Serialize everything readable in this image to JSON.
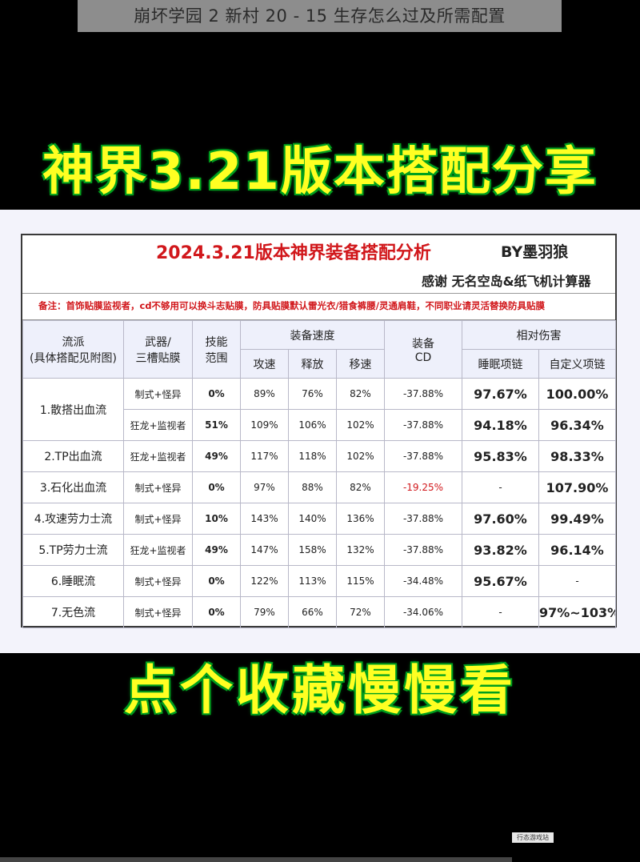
{
  "caption": "崩坏学园 2 新村 20 - 15 生存怎么过及所需配置",
  "headline_top": "神界3.21版本搭配分享",
  "headline_bottom": "点个收藏慢慢看",
  "table": {
    "title": "2024.3.21版本神界装备搭配分析",
    "author": "BY墨羽狼",
    "thanks": "感谢 无名空岛&纸飞机计算器",
    "note": "备注：首饰贴膜监视者，cd不够用可以换斗志贴膜，防具贴膜默认雷光衣/猎食裤腰/灵通肩鞋，不同职业请灵活替换防具贴膜",
    "headers": {
      "school": "流派",
      "school_sub": "(具体搭配见附图)",
      "weapon": "武器/",
      "weapon_sub": "三槽贴膜",
      "skill": "技能",
      "skill_sub": "范围",
      "speed": "装备速度",
      "atk": "攻速",
      "cast": "释放",
      "move": "移速",
      "cd": "装备",
      "cd_sub": "CD",
      "dmg": "相对伤害",
      "dmg_a": "睡眠项链",
      "dmg_b": "自定义项链"
    },
    "rows": [
      {
        "name": "1.散搭出血流",
        "weapon": "制式+怪异",
        "skill": "0%",
        "atk": "89%",
        "cast": "76%",
        "move": "82%",
        "cd": "-37.88%",
        "dmg_a": "97.67%",
        "dmg_b": "100.00%"
      },
      {
        "name": "",
        "weapon": "狂龙+监视者",
        "skill": "51%",
        "atk": "109%",
        "cast": "106%",
        "move": "102%",
        "cd": "-37.88%",
        "dmg_a": "94.18%",
        "dmg_b": "96.34%"
      },
      {
        "name": "2.TP出血流",
        "weapon": "狂龙+监视者",
        "skill": "49%",
        "atk": "117%",
        "cast": "118%",
        "move": "102%",
        "cd": "-37.88%",
        "dmg_a": "95.83%",
        "dmg_b": "98.33%"
      },
      {
        "name": "3.石化出血流",
        "weapon": "制式+怪异",
        "skill": "0%",
        "atk": "97%",
        "cast": "88%",
        "move": "82%",
        "cd": "-19.25%",
        "dmg_a": "-",
        "dmg_b": "107.90%"
      },
      {
        "name": "4.攻速劳力士流",
        "weapon": "制式+怪异",
        "skill": "10%",
        "atk": "143%",
        "cast": "140%",
        "move": "136%",
        "cd": "-37.88%",
        "dmg_a": "97.60%",
        "dmg_b": "99.49%"
      },
      {
        "name": "5.TP劳力士流",
        "weapon": "狂龙+监视者",
        "skill": "49%",
        "atk": "147%",
        "cast": "158%",
        "move": "132%",
        "cd": "-37.88%",
        "dmg_a": "93.82%",
        "dmg_b": "96.14%"
      },
      {
        "name": "6.睡眠流",
        "weapon": "制式+怪异",
        "skill": "0%",
        "atk": "122%",
        "cast": "113%",
        "move": "115%",
        "cd": "-34.48%",
        "dmg_a": "95.67%",
        "dmg_b": "-"
      },
      {
        "name": "7.无色流",
        "weapon": "制式+怪异",
        "skill": "0%",
        "atk": "79%",
        "cast": "66%",
        "move": "72%",
        "cd": "-34.06%",
        "dmg_a": "-",
        "dmg_b": "97%~103%"
      }
    ]
  },
  "watermark": "行态游戏站"
}
